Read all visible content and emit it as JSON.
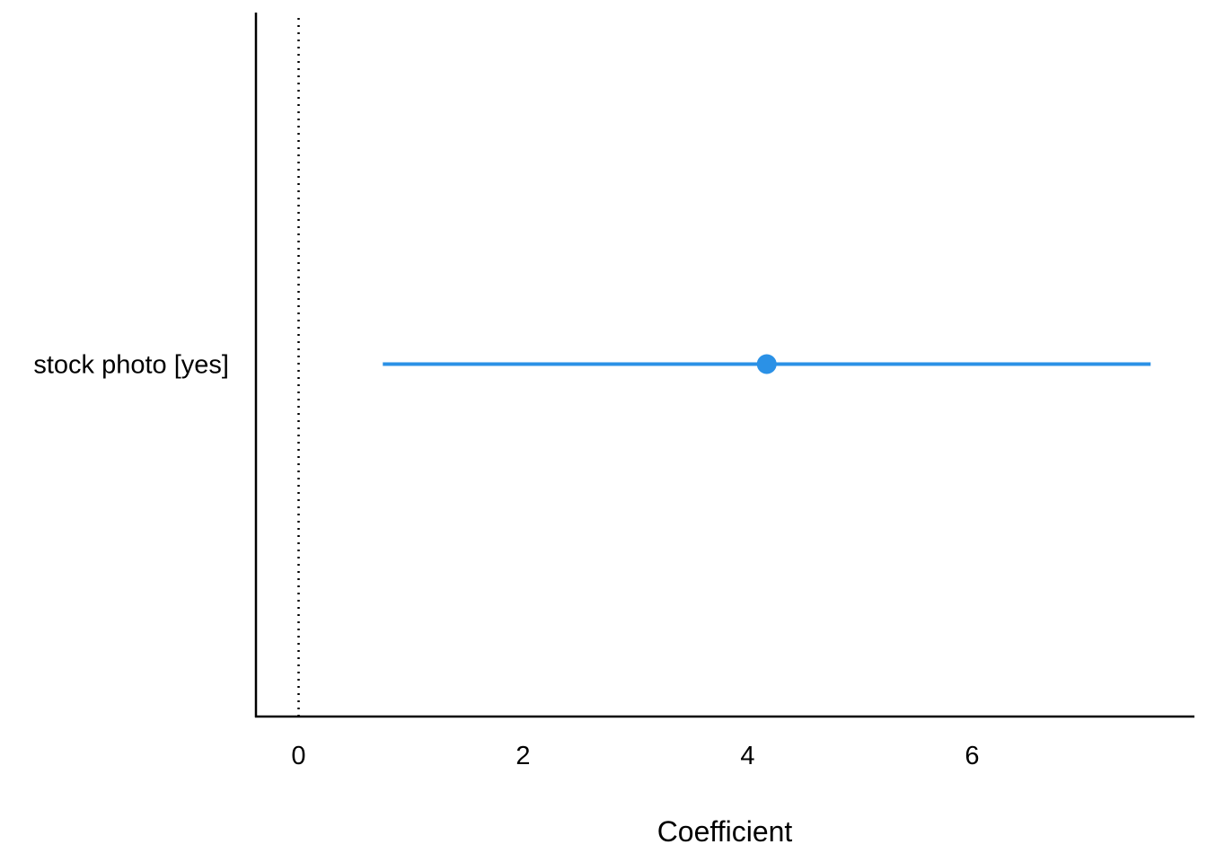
{
  "chart_data": {
    "type": "scatter",
    "xlabel": "Coefficient",
    "ylabel": "",
    "xlim": [
      -0.38,
      7.98
    ],
    "xticks": [
      0,
      2,
      4,
      6
    ],
    "xtick_labels": [
      "0",
      "2",
      "4",
      "6"
    ],
    "reference_line_x": 0,
    "grid": false,
    "points": [
      {
        "label": "stock photo [yes]",
        "estimate": 4.17,
        "ci_low": 0.75,
        "ci_high": 7.59
      }
    ],
    "colors": {
      "point": "#2b91e6",
      "axis": "#000000",
      "reference": "#000000"
    }
  }
}
